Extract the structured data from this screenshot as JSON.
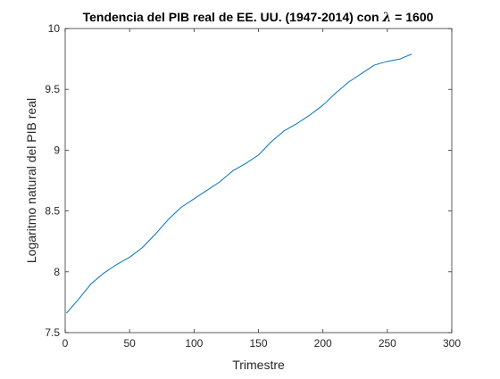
{
  "chart_data": {
    "type": "line",
    "title_prefix": "Tendencia del PIB real de EE. UU. (1947-2014) con ",
    "title_symbol": "λ",
    "title_suffix": " = 1600",
    "xlabel": "Trimestre",
    "ylabel": "Logaritmo natural del PIB real",
    "xlim": [
      0,
      300
    ],
    "ylim": [
      7.5,
      10
    ],
    "xticks": [
      0,
      50,
      100,
      150,
      200,
      250,
      300
    ],
    "xtick_labels": [
      "0",
      "50",
      "100",
      "150",
      "200",
      "250",
      "300"
    ],
    "yticks": [
      7.5,
      8,
      8.5,
      9,
      9.5,
      10
    ],
    "ytick_labels": [
      "7.5",
      "8",
      "8.5",
      "9",
      "9.5",
      "10"
    ],
    "grid": false,
    "line_color": "#0072BD",
    "series": [
      {
        "x": [
          1,
          10,
          20,
          30,
          40,
          50,
          60,
          70,
          80,
          90,
          100,
          110,
          120,
          130,
          140,
          150,
          160,
          170,
          180,
          190,
          200,
          210,
          220,
          230,
          240,
          250,
          260,
          269
        ],
        "values": [
          7.66,
          7.77,
          7.9,
          7.99,
          8.06,
          8.12,
          8.2,
          8.31,
          8.43,
          8.53,
          8.6,
          8.67,
          8.74,
          8.83,
          8.89,
          8.96,
          9.07,
          9.16,
          9.22,
          9.29,
          9.37,
          9.47,
          9.56,
          9.63,
          9.7,
          9.73,
          9.75,
          9.79
        ]
      }
    ]
  }
}
